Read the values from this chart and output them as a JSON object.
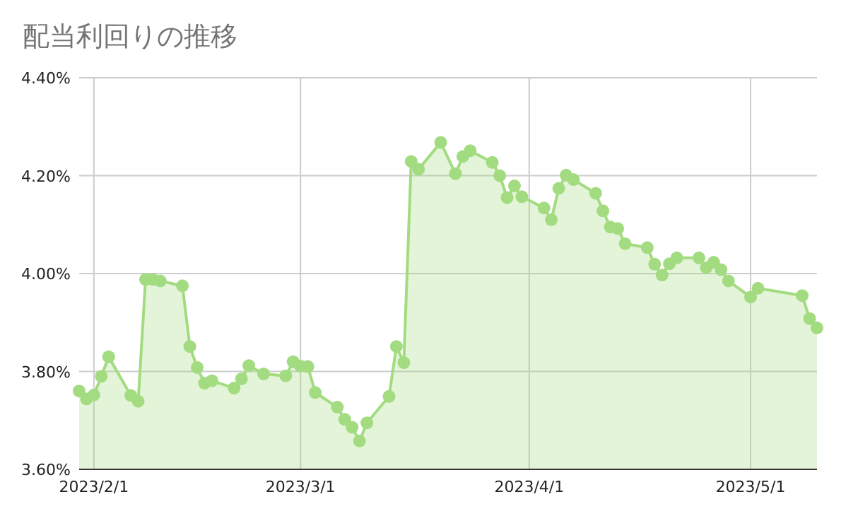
{
  "chart_data": {
    "type": "area",
    "title": "配当利回りの推移",
    "x": [
      "2023-01-30",
      "2023-01-31",
      "2023-02-01",
      "2023-02-02",
      "2023-02-03",
      "2023-02-06",
      "2023-02-07",
      "2023-02-08",
      "2023-02-09",
      "2023-02-10",
      "2023-02-13",
      "2023-02-14",
      "2023-02-15",
      "2023-02-16",
      "2023-02-17",
      "2023-02-20",
      "2023-02-21",
      "2023-02-22",
      "2023-02-24",
      "2023-02-27",
      "2023-02-28",
      "2023-03-01",
      "2023-03-02",
      "2023-03-03",
      "2023-03-06",
      "2023-03-07",
      "2023-03-08",
      "2023-03-09",
      "2023-03-10",
      "2023-03-13",
      "2023-03-14",
      "2023-03-15",
      "2023-03-16",
      "2023-03-17",
      "2023-03-20",
      "2023-03-22",
      "2023-03-23",
      "2023-03-24",
      "2023-03-27",
      "2023-03-28",
      "2023-03-29",
      "2023-03-30",
      "2023-03-31",
      "2023-04-03",
      "2023-04-04",
      "2023-04-05",
      "2023-04-06",
      "2023-04-07",
      "2023-04-10",
      "2023-04-11",
      "2023-04-12",
      "2023-04-13",
      "2023-04-14",
      "2023-04-17",
      "2023-04-18",
      "2023-04-19",
      "2023-04-20",
      "2023-04-21",
      "2023-04-24",
      "2023-04-25",
      "2023-04-26",
      "2023-04-27",
      "2023-04-28",
      "2023-05-01",
      "2023-05-02",
      "2023-05-08",
      "2023-05-09",
      "2023-05-10"
    ],
    "values": [
      3.76,
      3.744,
      3.752,
      3.79,
      3.83,
      3.751,
      3.739,
      3.988,
      3.988,
      3.985,
      3.975,
      3.851,
      3.808,
      3.776,
      3.781,
      3.766,
      3.785,
      3.812,
      3.795,
      3.791,
      3.82,
      3.811,
      3.81,
      3.757,
      3.727,
      3.702,
      3.686,
      3.658,
      3.695,
      3.749,
      3.851,
      3.818,
      4.229,
      4.213,
      4.268,
      4.204,
      4.239,
      4.251,
      4.227,
      4.2,
      4.155,
      4.179,
      4.157,
      4.134,
      4.11,
      4.174,
      4.201,
      4.192,
      4.164,
      4.128,
      4.095,
      4.092,
      4.061,
      4.053,
      4.019,
      3.997,
      4.02,
      4.032,
      4.032,
      4.012,
      4.023,
      4.008,
      3.985,
      3.952,
      3.97,
      3.955,
      3.908,
      3.889
    ],
    "color": "#a3dc80",
    "xlim": [
      "2023-01-30",
      "2023-05-10"
    ],
    "xticks": [
      {
        "value": "2023-02-01",
        "label": "2023/2/1"
      },
      {
        "value": "2023-03-01",
        "label": "2023/3/1"
      },
      {
        "value": "2023-04-01",
        "label": "2023/4/1"
      },
      {
        "value": "2023-05-01",
        "label": "2023/5/1"
      }
    ],
    "ylim": [
      3.6,
      4.4
    ],
    "yticks": [
      {
        "value": 3.6,
        "label": "3.60%"
      },
      {
        "value": 3.8,
        "label": "3.80%"
      },
      {
        "value": 4.0,
        "label": "4.00%"
      },
      {
        "value": 4.2,
        "label": "4.20%"
      },
      {
        "value": 4.4,
        "label": "4.40%"
      }
    ],
    "grid": true,
    "marker": "circle"
  }
}
